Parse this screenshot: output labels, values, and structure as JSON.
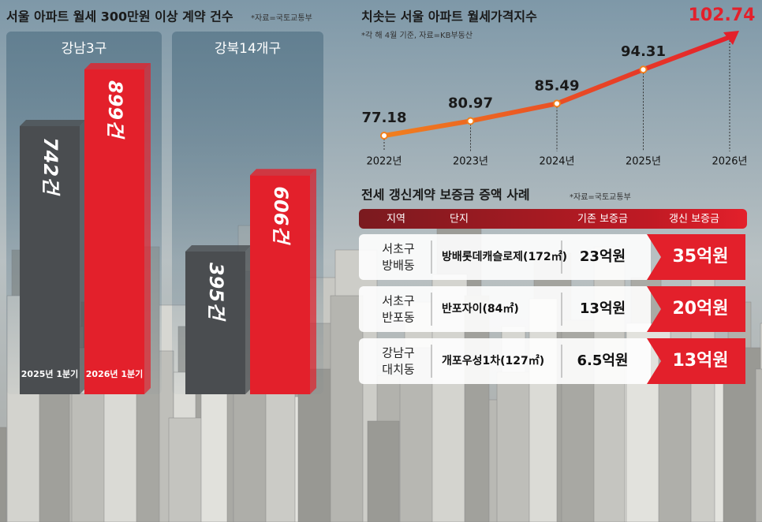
{
  "chart_data": [
    {
      "type": "bar",
      "title": "서울 아파트 월세 300만원 이상 계약 건수",
      "source": "*자료=국토교통부",
      "categories": [
        "강남3구",
        "강북14개구"
      ],
      "series": [
        {
          "name": "2025년 1분기",
          "color": "#4a4d50",
          "values": [
            742,
            395
          ],
          "value_labels": [
            "742건",
            "395건"
          ]
        },
        {
          "name": "2026년 1분기",
          "color": "#e3202b",
          "values": [
            899,
            606
          ],
          "value_labels": [
            "899건",
            "606건"
          ]
        }
      ]
    },
    {
      "type": "line",
      "title": "치솟는 서울 아파트 월세가격지수",
      "subtitle": "*각 해 4월 기준, 자료=KB부동산",
      "categories": [
        "2022년",
        "2023년",
        "2024년",
        "2025년",
        "2026년"
      ],
      "values": [
        77.18,
        80.97,
        85.49,
        94.31,
        102.74
      ],
      "color": "#f0801e",
      "end_color": "#e3202b"
    }
  ],
  "table": {
    "title": "전세 갱신계약 보증금 증액 사례",
    "source": "*자료=국토교통부",
    "header": [
      "지역",
      "단지",
      "기존 보증금",
      "갱신 보증금"
    ],
    "rows": [
      [
        [
          "서초구",
          "방배동"
        ],
        "방배롯데캐슬로제(172㎡)",
        "23억원",
        "35억원"
      ],
      [
        [
          "서초구",
          "반포동"
        ],
        "반포자이(84㎡)",
        "13억원",
        "20억원"
      ],
      [
        [
          "강남구",
          "대치동"
        ],
        "개포우성1차(127㎡)",
        "6.5억원",
        "13억원"
      ]
    ]
  }
}
